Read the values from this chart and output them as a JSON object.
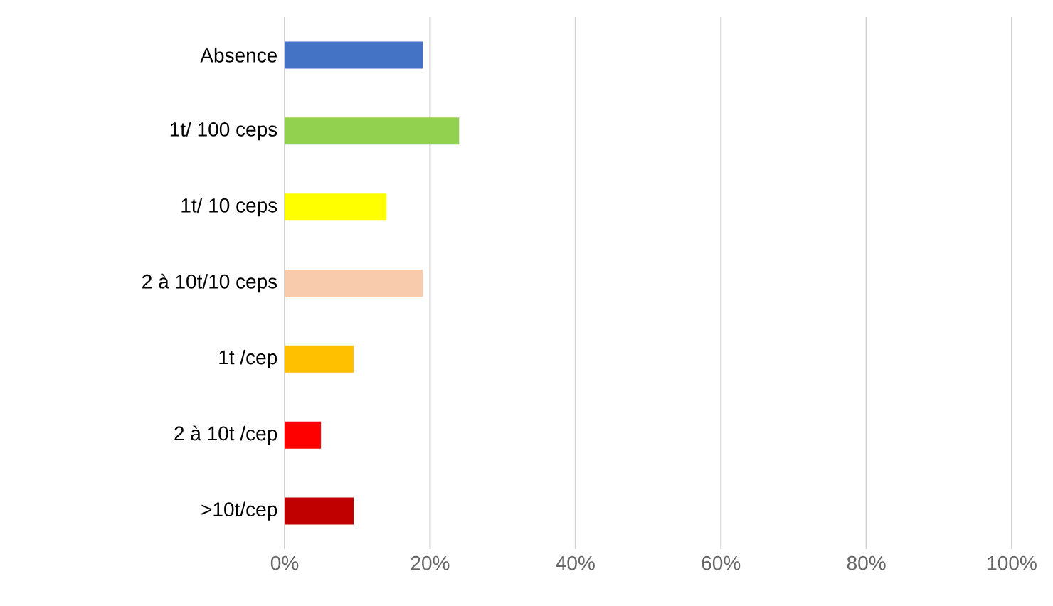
{
  "chart_data": {
    "type": "bar",
    "orientation": "horizontal",
    "categories": [
      "Absence",
      "1t/ 100 ceps",
      "1t/ 10 ceps",
      "2 à 10t/10 ceps",
      "1t /cep",
      "2 à 10t /cep",
      ">10t/cep"
    ],
    "values": [
      19,
      24,
      14,
      19,
      9.5,
      5,
      9.5
    ],
    "colors": [
      "#4472c4",
      "#92d050",
      "#ffff00",
      "#f8cbad",
      "#ffc000",
      "#ff0000",
      "#c00000"
    ],
    "xlim": [
      0,
      100
    ],
    "xticks": [
      {
        "value": 0,
        "label": "0%"
      },
      {
        "value": 20,
        "label": "20%"
      },
      {
        "value": 40,
        "label": "40%"
      },
      {
        "value": 60,
        "label": "60%"
      },
      {
        "value": 80,
        "label": "80%"
      },
      {
        "value": 100,
        "label": "100%"
      }
    ],
    "grid": "x"
  }
}
